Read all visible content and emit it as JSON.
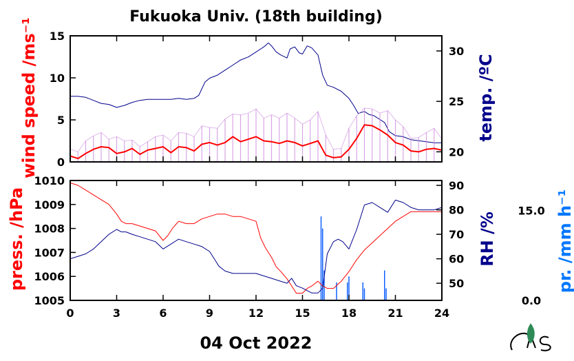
{
  "chart_data": [
    {
      "type": "line",
      "title": "Fukuoka Univ. (18th building)",
      "xlabel": "",
      "xlim": [
        0,
        24
      ],
      "ylabel_left": "wind speed /ms⁻¹",
      "ylabel_right": "temp. /ºC",
      "ylim_left": [
        0,
        15
      ],
      "yticks_left": [
        "0",
        "5",
        "10",
        "15"
      ],
      "ylim_right": [
        19,
        31.5
      ],
      "yticks_right": [
        "20",
        "25",
        "30"
      ],
      "series": [
        {
          "axis": "right",
          "color": "#00008b",
          "style": "line",
          "x": [
            0,
            0.5,
            1,
            1.5,
            2,
            2.5,
            3,
            3.5,
            4,
            4.5,
            5,
            5.5,
            6,
            6.5,
            7,
            7.5,
            8,
            8.3,
            8.7,
            9,
            9.5,
            10,
            10.5,
            11,
            11.5,
            12,
            12.5,
            12.8,
            13,
            13.3,
            13.6,
            14,
            14.2,
            14.5,
            14.8,
            15,
            15.3,
            15.6,
            16,
            16.3,
            16.6,
            17,
            17.5,
            18,
            18.3,
            18.6,
            19,
            19.3,
            19.6,
            20,
            20.3,
            20.6,
            21,
            21.5,
            22,
            22.5,
            23,
            23.5,
            24
          ],
          "values": [
            25.5,
            25.5,
            25.4,
            25.1,
            24.8,
            24.7,
            24.4,
            24.6,
            24.9,
            25.1,
            25.2,
            25.2,
            25.2,
            25.2,
            25.3,
            25.2,
            25.3,
            25.6,
            26.9,
            27.3,
            27.6,
            28.1,
            28.6,
            29.1,
            29.4,
            29.9,
            30.4,
            30.8,
            30.5,
            29.9,
            29.6,
            29.3,
            30.2,
            30.4,
            29.8,
            29.7,
            30.5,
            30.3,
            29.6,
            27.6,
            26.6,
            26.4,
            26.0,
            25.3,
            24.6,
            23.8,
            24.0,
            23.7,
            23.6,
            23.2,
            22.9,
            22.0,
            21.6,
            21.5,
            21.2,
            21.1,
            21.0,
            20.9,
            20.9
          ]
        },
        {
          "axis": "left",
          "color": "#cc88dd",
          "style": "spikes",
          "x": [
            0,
            0.5,
            1,
            1.5,
            2,
            2.5,
            3,
            3.5,
            4,
            4.5,
            5,
            5.5,
            6,
            6.5,
            7,
            7.5,
            8,
            8.5,
            9,
            9.5,
            10,
            10.5,
            11,
            11.5,
            12,
            12.5,
            13,
            13.5,
            14,
            14.5,
            15,
            15.5,
            16,
            16.5,
            17,
            17.5,
            18,
            18.5,
            19,
            19.5,
            20,
            20.5,
            21,
            21.5,
            22,
            22.5,
            23,
            23.5,
            24
          ],
          "values": [
            1.5,
            1.2,
            2.5,
            3.1,
            3.5,
            2.7,
            3.0,
            2.5,
            2.6,
            1.8,
            2.4,
            3.0,
            3.2,
            2.5,
            3.5,
            3.4,
            3.0,
            4.3,
            4.1,
            4.0,
            5.1,
            5.7,
            5.6,
            5.8,
            6.3,
            5.2,
            5.6,
            5.2,
            5.8,
            5.2,
            4.5,
            5.0,
            6.0,
            3.2,
            1.5,
            1.6,
            4.0,
            5.5,
            6.4,
            6.3,
            5.8,
            6.1,
            5.0,
            4.2,
            2.8,
            2.9,
            3.5,
            4.0,
            2.7
          ]
        },
        {
          "axis": "left",
          "color": "#ff0000",
          "style": "line",
          "x": [
            0,
            0.5,
            1,
            1.5,
            2,
            2.5,
            3,
            3.5,
            4,
            4.5,
            5,
            5.5,
            6,
            6.5,
            7,
            7.5,
            8,
            8.5,
            9,
            9.5,
            10,
            10.5,
            11,
            11.5,
            12,
            12.5,
            13,
            13.5,
            14,
            14.5,
            15,
            15.5,
            16,
            16.5,
            17,
            17.5,
            18,
            18.5,
            19,
            19.5,
            20,
            20.5,
            21,
            21.5,
            22,
            22.5,
            23,
            23.5,
            24
          ],
          "values": [
            0.7,
            0.4,
            1.0,
            1.5,
            1.8,
            1.7,
            1.0,
            1.2,
            1.6,
            0.9,
            1.4,
            1.6,
            1.8,
            1.1,
            1.8,
            1.7,
            1.3,
            2.1,
            2.3,
            2.0,
            2.3,
            3.0,
            2.4,
            2.7,
            3.0,
            2.5,
            2.4,
            2.2,
            2.5,
            2.3,
            1.9,
            2.2,
            2.5,
            0.8,
            0.5,
            0.6,
            1.5,
            2.8,
            4.4,
            4.3,
            3.8,
            3.2,
            2.3,
            2.0,
            1.3,
            1.2,
            1.5,
            1.6,
            1.4
          ]
        }
      ]
    },
    {
      "type": "line",
      "title": "",
      "xlabel": "04 Oct 2022",
      "xlim": [
        0,
        24
      ],
      "xticks": [
        "0",
        "3",
        "6",
        "9",
        "12",
        "15",
        "18",
        "21",
        "24"
      ],
      "ylabel_left": "press. /hPa",
      "ylabel_right": "RH /%",
      "ylabel_far_right": "pr. /mm h⁻¹",
      "ylim_left": [
        1005,
        1010
      ],
      "yticks_left": [
        "1005",
        "1006",
        "1007",
        "1008",
        "1009",
        "1010"
      ],
      "ylim_right": [
        43,
        92
      ],
      "yticks_right": [
        "50",
        "60",
        "70",
        "80",
        "90"
      ],
      "precip_ticks": [
        "0.0",
        "15.0"
      ],
      "series": [
        {
          "axis": "left",
          "color": "#ff0000",
          "style": "line",
          "x": [
            0,
            0.5,
            1,
            1.5,
            2,
            2.5,
            3,
            3.3,
            3.6,
            4,
            4.5,
            5,
            5.5,
            6,
            6.3,
            6.6,
            7,
            7.5,
            8,
            8.5,
            9,
            9.5,
            10,
            10.5,
            11,
            11.5,
            12,
            12.3,
            12.6,
            13,
            13.3,
            13.6,
            14,
            14.3,
            14.6,
            15,
            15.3,
            15.6,
            16,
            16.3,
            16.6,
            17,
            17.5,
            18,
            18.5,
            19,
            19.5,
            20,
            20.5,
            21,
            21.5,
            22,
            22.5,
            23,
            23.5,
            24
          ],
          "values": [
            1009.9,
            1009.8,
            1009.6,
            1009.4,
            1009.2,
            1009.0,
            1008.6,
            1008.3,
            1008.2,
            1008.2,
            1008.1,
            1008.0,
            1007.9,
            1007.5,
            1007.7,
            1008.0,
            1008.3,
            1008.2,
            1008.2,
            1008.4,
            1008.5,
            1008.6,
            1008.6,
            1008.5,
            1008.5,
            1008.4,
            1008.3,
            1007.6,
            1007.2,
            1006.8,
            1006.4,
            1006.2,
            1005.9,
            1005.6,
            1005.3,
            1005.3,
            1005.5,
            1005.6,
            1005.8,
            1005.6,
            1005.5,
            1005.5,
            1005.8,
            1006.2,
            1006.7,
            1007.1,
            1007.4,
            1007.7,
            1008.0,
            1008.3,
            1008.5,
            1008.7,
            1008.7,
            1008.7,
            1008.7,
            1008.7
          ]
        },
        {
          "axis": "right",
          "color": "#00008b",
          "style": "line",
          "x": [
            0,
            0.5,
            1,
            1.5,
            2,
            2.5,
            3,
            3.3,
            3.6,
            4,
            4.5,
            5,
            5.5,
            6,
            6.5,
            7,
            7.5,
            8,
            8.5,
            9,
            9.3,
            9.6,
            10,
            10.5,
            11,
            11.5,
            12,
            12.5,
            13,
            13.5,
            14,
            14.3,
            14.6,
            15,
            15.3,
            15.6,
            16,
            16.3,
            16.6,
            17,
            17.3,
            17.6,
            18,
            18.5,
            19,
            19.5,
            20,
            20.5,
            21,
            21.5,
            22,
            22.5,
            23,
            23.5,
            24
          ],
          "values": [
            60,
            61,
            62,
            64,
            67,
            70,
            72,
            71,
            71,
            70,
            69,
            68,
            67,
            64,
            66,
            68,
            67,
            66,
            65,
            63,
            60,
            57,
            55,
            54,
            54,
            54,
            54,
            53,
            52,
            51,
            50,
            52,
            49,
            48,
            47,
            46,
            46,
            48,
            62,
            67,
            68,
            67,
            64,
            72,
            82,
            83,
            81,
            79,
            84,
            83,
            81,
            80,
            80,
            80,
            81
          ]
        },
        {
          "axis": "precip",
          "color": "#0055ff",
          "style": "bars",
          "x": [
            16.2,
            16.3,
            16.4,
            17.2,
            17.9,
            18.0,
            18.9,
            19.0,
            20.3,
            20.4
          ],
          "values": [
            14,
            12,
            5,
            3,
            3,
            4,
            3,
            2,
            5,
            2
          ]
        }
      ]
    }
  ]
}
